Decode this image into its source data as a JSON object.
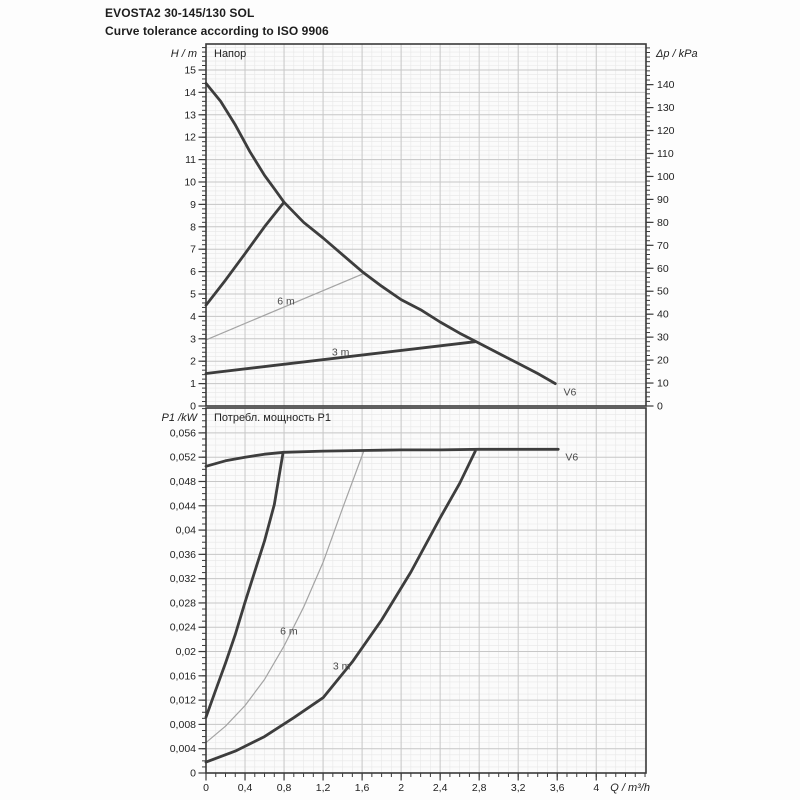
{
  "header": {
    "title": "EVOSTA2 30-145/130 SOL",
    "subtitle": "Curve tolerance according to ISO 9906"
  },
  "palette": {
    "curve_dark": "#3d3d3d",
    "curve_light": "#a4a4a4",
    "grid_major": "#c7c7c7",
    "grid_minor": "#e7e7e7",
    "axis": "#3a3a3a",
    "text": "#222222",
    "annotation": "#4a4a4a",
    "plot_bg": "#fbfbfb"
  },
  "chart_data": [
    {
      "type": "line",
      "title": "Напор",
      "ylabel": "H / m",
      "y2label": "Δp / kPa",
      "xlabel": "",
      "xlim": [
        0,
        4.51
      ],
      "ylim": [
        0,
        16.16
      ],
      "y2lim": [
        0,
        157.7
      ],
      "grid": true,
      "show_x_axis": false,
      "x_ticks": {
        "minor_step": 0.1,
        "major": [
          [
            0,
            "0"
          ],
          [
            0.4,
            "0,4"
          ],
          [
            0.8,
            "0,8"
          ],
          [
            1.2,
            "1,2"
          ],
          [
            1.6,
            "1,6"
          ],
          [
            2,
            "2"
          ],
          [
            2.4,
            "2,4"
          ],
          [
            2.8,
            "2,8"
          ],
          [
            3.2,
            "3,2"
          ],
          [
            3.6,
            "3,6"
          ],
          [
            4,
            "4"
          ]
        ]
      },
      "y_ticks": {
        "minor_step": 0.2,
        "major": [
          [
            0,
            "0"
          ],
          [
            1,
            "1"
          ],
          [
            2,
            "2"
          ],
          [
            3,
            "3"
          ],
          [
            4,
            "4"
          ],
          [
            5,
            "5"
          ],
          [
            6,
            "6"
          ],
          [
            7,
            "7"
          ],
          [
            8,
            "8"
          ],
          [
            9,
            "9"
          ],
          [
            10,
            "10"
          ],
          [
            11,
            "11"
          ],
          [
            12,
            "12"
          ],
          [
            13,
            "13"
          ],
          [
            14,
            "14"
          ],
          [
            15,
            "15"
          ]
        ]
      },
      "y2_ticks": {
        "minor_step": 2,
        "major": [
          [
            0,
            "0"
          ],
          [
            10,
            "10"
          ],
          [
            20,
            "20"
          ],
          [
            30,
            "30"
          ],
          [
            40,
            "40"
          ],
          [
            50,
            "50"
          ],
          [
            60,
            "60"
          ],
          [
            70,
            "70"
          ],
          [
            80,
            "80"
          ],
          [
            90,
            "90"
          ],
          [
            100,
            "100"
          ],
          [
            110,
            "110"
          ],
          [
            120,
            "120"
          ],
          [
            130,
            "130"
          ],
          [
            140,
            "140"
          ]
        ]
      },
      "series": [
        {
          "name": "head-6m-line",
          "style": "light",
          "points": [
            [
              0,
              2.95
            ],
            [
              1.62,
              5.92
            ]
          ]
        },
        {
          "name": "head-3m-line",
          "style": "dark",
          "points": [
            [
              0,
              1.45
            ],
            [
              2.76,
              2.87
            ]
          ]
        },
        {
          "name": "head-rise-segment",
          "style": "dark",
          "points": [
            [
              0,
              4.5
            ],
            [
              0.2,
              5.62
            ],
            [
              0.4,
              6.8
            ],
            [
              0.6,
              8.0
            ],
            [
              0.8,
              9.1
            ]
          ]
        },
        {
          "name": "head-max-speed-curve",
          "style": "dark",
          "points": [
            [
              0,
              14.4
            ],
            [
              0.15,
              13.6
            ],
            [
              0.3,
              12.55
            ],
            [
              0.45,
              11.35
            ],
            [
              0.6,
              10.3
            ],
            [
              0.7,
              9.7
            ],
            [
              0.8,
              9.1
            ],
            [
              1.0,
              8.2
            ],
            [
              1.2,
              7.5
            ],
            [
              1.4,
              6.75
            ],
            [
              1.6,
              6.0
            ],
            [
              1.8,
              5.35
            ],
            [
              2.0,
              4.75
            ],
            [
              2.2,
              4.3
            ],
            [
              2.4,
              3.75
            ],
            [
              2.6,
              3.25
            ],
            [
              2.8,
              2.8
            ],
            [
              3.0,
              2.35
            ],
            [
              3.2,
              1.9
            ],
            [
              3.4,
              1.45
            ],
            [
              3.58,
              1.0
            ]
          ]
        }
      ],
      "annotations": [
        {
          "text": "6 m",
          "x": 0.82,
          "y": 4.68
        },
        {
          "text": "3 m",
          "x": 1.38,
          "y": 2.42
        },
        {
          "text": "V6",
          "x": 3.73,
          "y": 0.62
        }
      ]
    },
    {
      "type": "line",
      "title": "Потребл. мощность P1",
      "ylabel": "P1 /kW",
      "xlabel": "Q / m³/h",
      "xlim": [
        0,
        4.51
      ],
      "ylim": [
        0,
        0.0601
      ],
      "grid": true,
      "show_x_axis": true,
      "x_ticks": {
        "minor_step": 0.1,
        "major": [
          [
            0,
            "0"
          ],
          [
            0.4,
            "0,4"
          ],
          [
            0.8,
            "0,8"
          ],
          [
            1.2,
            "1,2"
          ],
          [
            1.6,
            "1,6"
          ],
          [
            2,
            "2"
          ],
          [
            2.4,
            "2,4"
          ],
          [
            2.8,
            "2,8"
          ],
          [
            3.2,
            "3,2"
          ],
          [
            3.6,
            "3,6"
          ],
          [
            4,
            "4"
          ]
        ]
      },
      "y_ticks": {
        "minor_step": 0.001,
        "major": [
          [
            0,
            "0"
          ],
          [
            0.004,
            "0,004"
          ],
          [
            0.008,
            "0,008"
          ],
          [
            0.012,
            "0,012"
          ],
          [
            0.016,
            "0,016"
          ],
          [
            0.02,
            "0,02"
          ],
          [
            0.024,
            "0,024"
          ],
          [
            0.028,
            "0,028"
          ],
          [
            0.032,
            "0,032"
          ],
          [
            0.036,
            "0,036"
          ],
          [
            0.04,
            "0,04"
          ],
          [
            0.044,
            "0,044"
          ],
          [
            0.048,
            "0,048"
          ],
          [
            0.052,
            "0,052"
          ],
          [
            0.056,
            "0,056"
          ]
        ]
      },
      "series": [
        {
          "name": "power-6m-curve",
          "style": "light",
          "points": [
            [
              0,
              0.005
            ],
            [
              0.2,
              0.0077
            ],
            [
              0.4,
              0.0111
            ],
            [
              0.6,
              0.0154
            ],
            [
              0.8,
              0.0209
            ],
            [
              1.0,
              0.0273
            ],
            [
              1.2,
              0.0347
            ],
            [
              1.4,
              0.0436
            ],
            [
              1.62,
              0.0531
            ]
          ]
        },
        {
          "name": "power-3m-curve",
          "style": "dark",
          "points": [
            [
              0,
              0.0018
            ],
            [
              0.3,
              0.0036
            ],
            [
              0.6,
              0.006
            ],
            [
              0.9,
              0.0091
            ],
            [
              1.2,
              0.0124
            ],
            [
              1.5,
              0.0183
            ],
            [
              1.8,
              0.0252
            ],
            [
              2.1,
              0.0331
            ],
            [
              2.4,
              0.042
            ],
            [
              2.6,
              0.0477
            ],
            [
              2.76,
              0.053
            ]
          ]
        },
        {
          "name": "power-min-flow-curve",
          "style": "dark",
          "points": [
            [
              0,
              0.0092
            ],
            [
              0.1,
              0.0137
            ],
            [
              0.2,
              0.0181
            ],
            [
              0.3,
              0.0228
            ],
            [
              0.4,
              0.0281
            ],
            [
              0.5,
              0.0332
            ],
            [
              0.6,
              0.0382
            ],
            [
              0.7,
              0.0442
            ],
            [
              0.79,
              0.0528
            ]
          ]
        },
        {
          "name": "power-v6-curve",
          "style": "dark",
          "points": [
            [
              0,
              0.0505
            ],
            [
              0.2,
              0.0514
            ],
            [
              0.4,
              0.052
            ],
            [
              0.6,
              0.0525
            ],
            [
              0.8,
              0.0528
            ],
            [
              1.2,
              0.053
            ],
            [
              1.6,
              0.0531
            ],
            [
              2.0,
              0.0532
            ],
            [
              2.4,
              0.0532
            ],
            [
              2.8,
              0.0533
            ],
            [
              3.2,
              0.0533
            ],
            [
              3.61,
              0.0533
            ]
          ]
        }
      ],
      "annotations": [
        {
          "text": "6 m",
          "x": 0.85,
          "y": 0.0234
        },
        {
          "text": "3 m",
          "x": 1.39,
          "y": 0.0176
        },
        {
          "text": "V6",
          "x": 3.75,
          "y": 0.052
        }
      ]
    }
  ]
}
